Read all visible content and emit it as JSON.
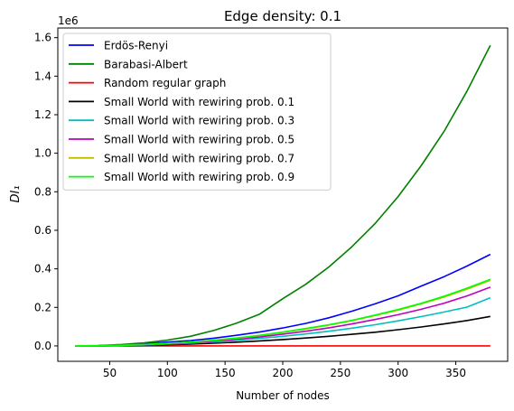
{
  "chart_data": {
    "type": "line",
    "title": "Edge density: 0.1",
    "xlabel": "Number of nodes",
    "ylabel": "DI₁",
    "y_offset_text": "1e6",
    "xlim": [
      5,
      395
    ],
    "ylim": [
      -80000,
      1650000
    ],
    "y_scale_factor": 1000000,
    "xticks": [
      50,
      100,
      150,
      200,
      250,
      300,
      350
    ],
    "yticks": [
      0,
      200000,
      400000,
      600000,
      800000,
      1000000,
      1200000,
      1400000,
      1600000
    ],
    "ytick_labels": [
      "0.0",
      "0.2",
      "0.4",
      "0.6",
      "0.8",
      "1.0",
      "1.2",
      "1.4",
      "1.6"
    ],
    "legend_position": "top-left",
    "grid": false,
    "x": [
      20,
      40,
      60,
      80,
      100,
      120,
      140,
      160,
      180,
      200,
      220,
      240,
      260,
      280,
      300,
      320,
      340,
      360,
      380
    ],
    "series": [
      {
        "name": "Erdös-Renyi",
        "color": "#0000ff",
        "values": [
          0,
          1000,
          5000,
          12000,
          20000,
          28000,
          40000,
          55000,
          72000,
          93000,
          117000,
          146000,
          180000,
          218000,
          260000,
          310000,
          360000,
          415000,
          475000
        ]
      },
      {
        "name": "Barabasi-Albert",
        "color": "#008000",
        "values": [
          0,
          2000,
          7000,
          16000,
          30000,
          50000,
          80000,
          118000,
          165000,
          245000,
          320000,
          410000,
          515000,
          635000,
          775000,
          935000,
          1115000,
          1325000,
          1560000
        ]
      },
      {
        "name": "Random regular graph",
        "color": "#ff0000",
        "values": [
          0,
          0,
          0,
          0,
          0,
          0,
          0,
          0,
          0,
          0,
          0,
          0,
          0,
          0,
          0,
          0,
          0,
          0,
          0
        ]
      },
      {
        "name": "Small World with rewiring prob. 0.1",
        "color": "#000000",
        "values": [
          0,
          300,
          1200,
          3000,
          6000,
          9500,
          14000,
          19500,
          26000,
          33000,
          41000,
          50000,
          60000,
          71000,
          84000,
          98000,
          114000,
          132000,
          153000
        ]
      },
      {
        "name": "Small World with rewiring prob. 0.3",
        "color": "#00bfbf",
        "values": [
          0,
          500,
          2000,
          5000,
          9000,
          14000,
          21000,
          29000,
          39000,
          50000,
          62000,
          76000,
          92000,
          110000,
          130000,
          152000,
          176000,
          202000,
          250000
        ]
      },
      {
        "name": "Small World with rewiring prob. 0.5",
        "color": "#bf00bf",
        "values": [
          0,
          600,
          2500,
          6000,
          11000,
          17000,
          25000,
          35000,
          47000,
          61000,
          76000,
          94000,
          114000,
          137000,
          162000,
          190000,
          222000,
          260000,
          305000
        ]
      },
      {
        "name": "Small World with rewiring prob. 0.7",
        "color": "#bfbf00",
        "values": [
          0,
          700,
          2900,
          7000,
          13000,
          20000,
          29000,
          40000,
          54000,
          70000,
          88000,
          108000,
          131000,
          157000,
          186000,
          218000,
          254000,
          295000,
          340000
        ]
      },
      {
        "name": "Small World with rewiring prob. 0.9",
        "color": "#00ff00",
        "values": [
          0,
          700,
          3000,
          7200,
          13500,
          20500,
          30000,
          41000,
          55000,
          71500,
          90000,
          110000,
          133000,
          160000,
          189000,
          221000,
          258000,
          300000,
          345000
        ]
      }
    ]
  }
}
